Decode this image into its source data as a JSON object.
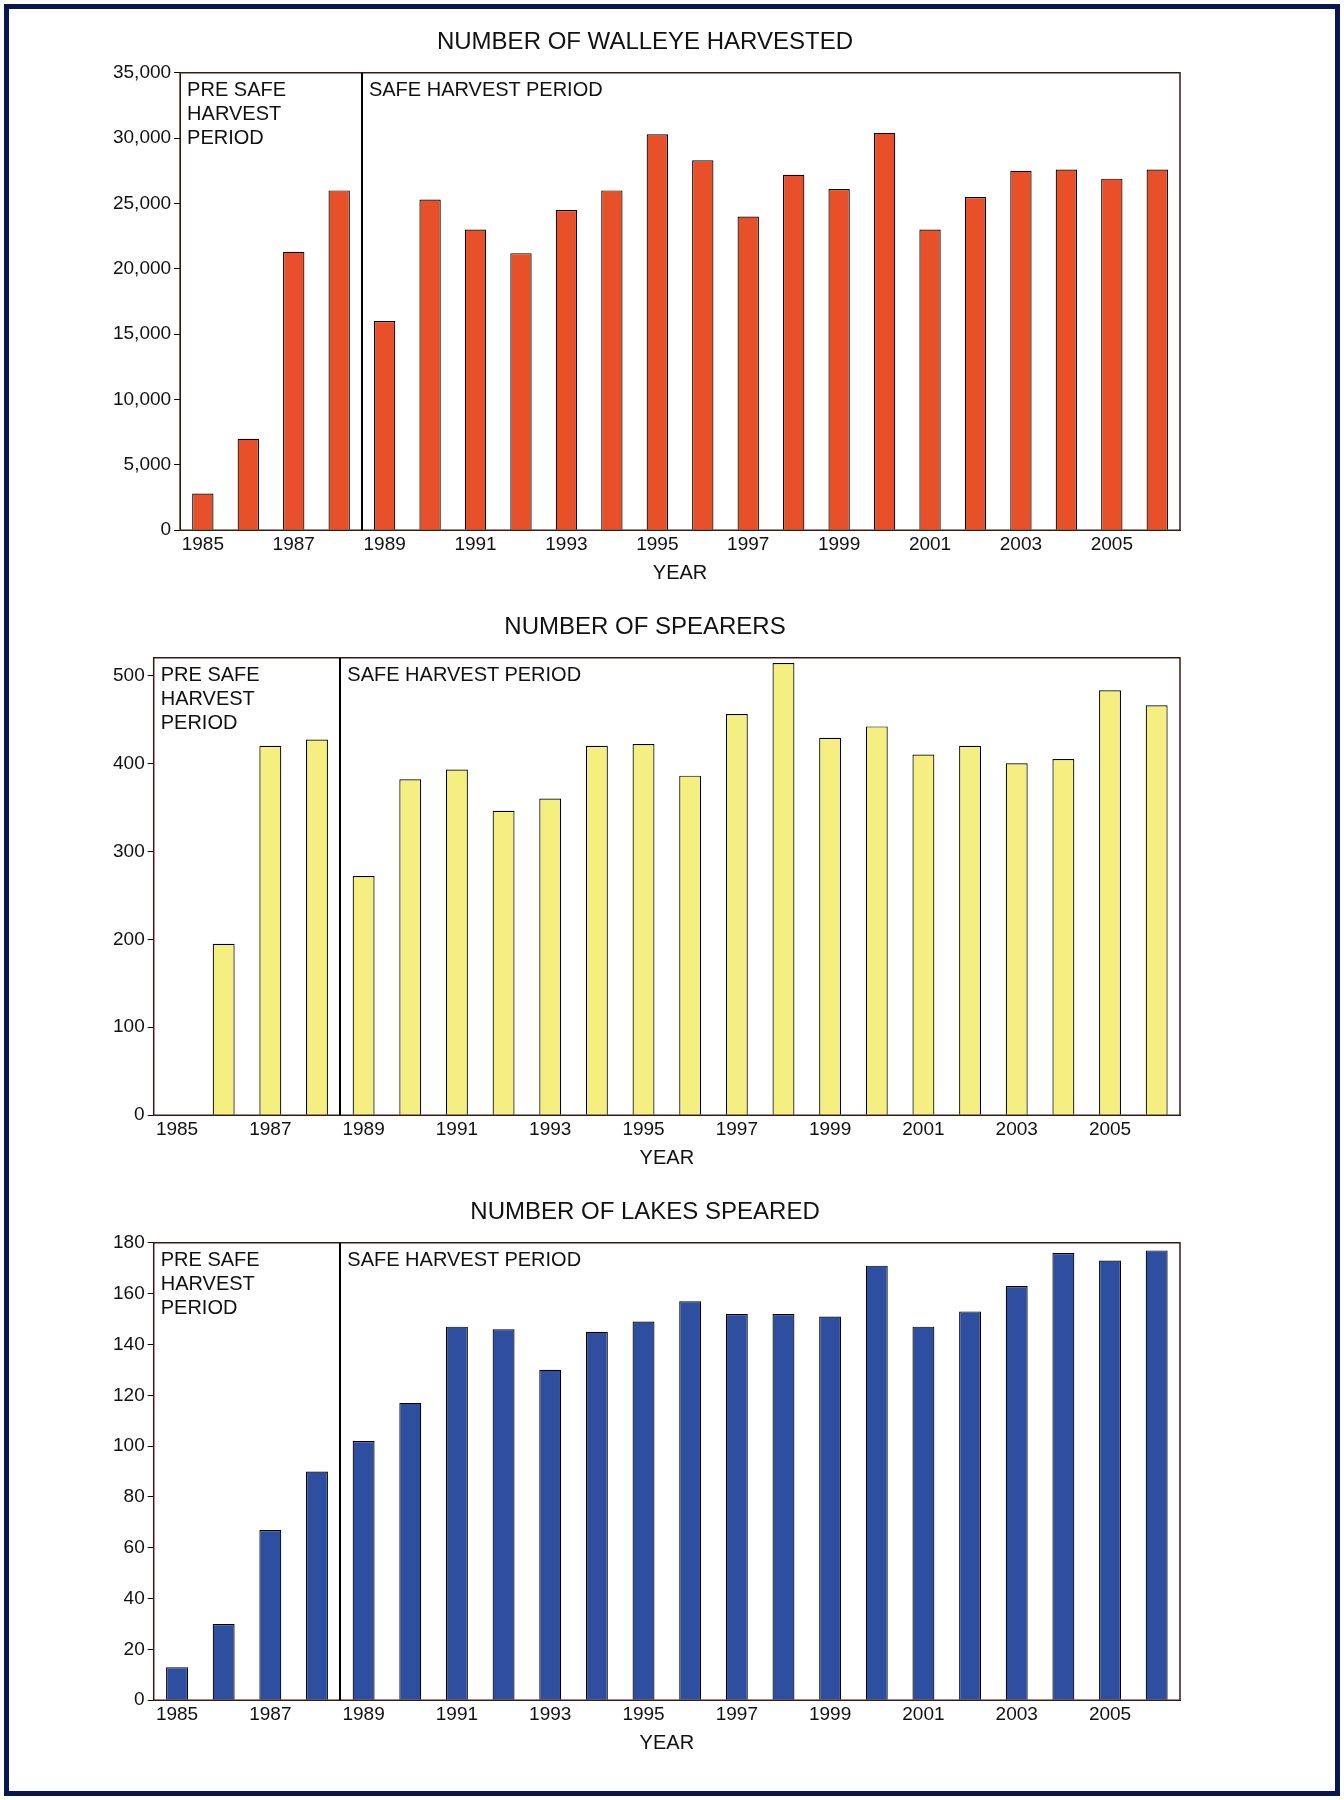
{
  "chart_data": [
    {
      "type": "bar",
      "title": "NUMBER OF WALLEYE HARVESTED",
      "xlabel": "YEAR",
      "categories": [
        "1985",
        null,
        "1987",
        null,
        "1989",
        null,
        "1991",
        null,
        "1993",
        null,
        "1995",
        null,
        "1997",
        null,
        "1999",
        null,
        "2001",
        null,
        "2003",
        null,
        "2005",
        null
      ],
      "values": [
        2800,
        7000,
        21300,
        26000,
        16000,
        25300,
        23000,
        21200,
        24500,
        26000,
        30300,
        28300,
        24000,
        27200,
        26100,
        30400,
        23000,
        25500,
        27500,
        27600,
        26900,
        27600
      ],
      "color": "#e8502a",
      "ylim": [
        0,
        35000
      ],
      "yticks": [
        {
          "value": 0,
          "label": "0"
        },
        {
          "value": 5000,
          "label": "5,000"
        },
        {
          "value": 10000,
          "label": "10,000"
        },
        {
          "value": 15000,
          "label": "15,000"
        },
        {
          "value": 20000,
          "label": "20,000"
        },
        {
          "value": 25000,
          "label": "25,000"
        },
        {
          "value": 30000,
          "label": "30,000"
        },
        {
          "value": 35000,
          "label": "35,000"
        }
      ],
      "annotations": [
        "PRE SAFE HARVEST PERIOD",
        "SAFE HARVEST PERIOD"
      ]
    },
    {
      "type": "bar",
      "title": "NUMBER OF SPEARERS",
      "xlabel": "YEAR",
      "categories": [
        "1985",
        null,
        "1987",
        null,
        "1989",
        null,
        "1991",
        null,
        "1993",
        null,
        "1995",
        null,
        "1997",
        null,
        "1999",
        null,
        "2001",
        null,
        "2003",
        null,
        "2005",
        null
      ],
      "values": [
        null,
        195,
        420,
        427,
        272,
        382,
        393,
        346,
        360,
        420,
        422,
        386,
        456,
        514,
        429,
        442,
        410,
        420,
        400,
        405,
        483,
        466
      ],
      "color": "#f5ee80",
      "ylim": [
        0,
        520
      ],
      "yticks": [
        0,
        100,
        200,
        300,
        400,
        500
      ],
      "annotations": [
        "PRE SAFE HARVEST PERIOD",
        "SAFE HARVEST PERIOD"
      ]
    },
    {
      "type": "bar",
      "title": "NUMBER OF LAKES SPEARED",
      "xlabel": "YEAR",
      "categories": [
        "1985",
        null,
        "1987",
        null,
        "1989",
        null,
        "1991",
        null,
        "1993",
        null,
        "1995",
        null,
        "1997",
        null,
        "1999",
        null,
        "2001",
        null,
        "2003",
        null,
        "2005",
        null
      ],
      "values": [
        13,
        30,
        67,
        90,
        102,
        117,
        147,
        146,
        130,
        145,
        149,
        157,
        152,
        152,
        151,
        171,
        147,
        153,
        163,
        176,
        173,
        177
      ],
      "color": "#2e4fa0",
      "ylim": [
        0,
        180
      ],
      "yticks": [
        0,
        20,
        40,
        60,
        80,
        100,
        120,
        140,
        160,
        180
      ],
      "annotations": [
        "PRE SAFE HARVEST PERIOD",
        "SAFE HARVEST PERIOD"
      ]
    }
  ]
}
